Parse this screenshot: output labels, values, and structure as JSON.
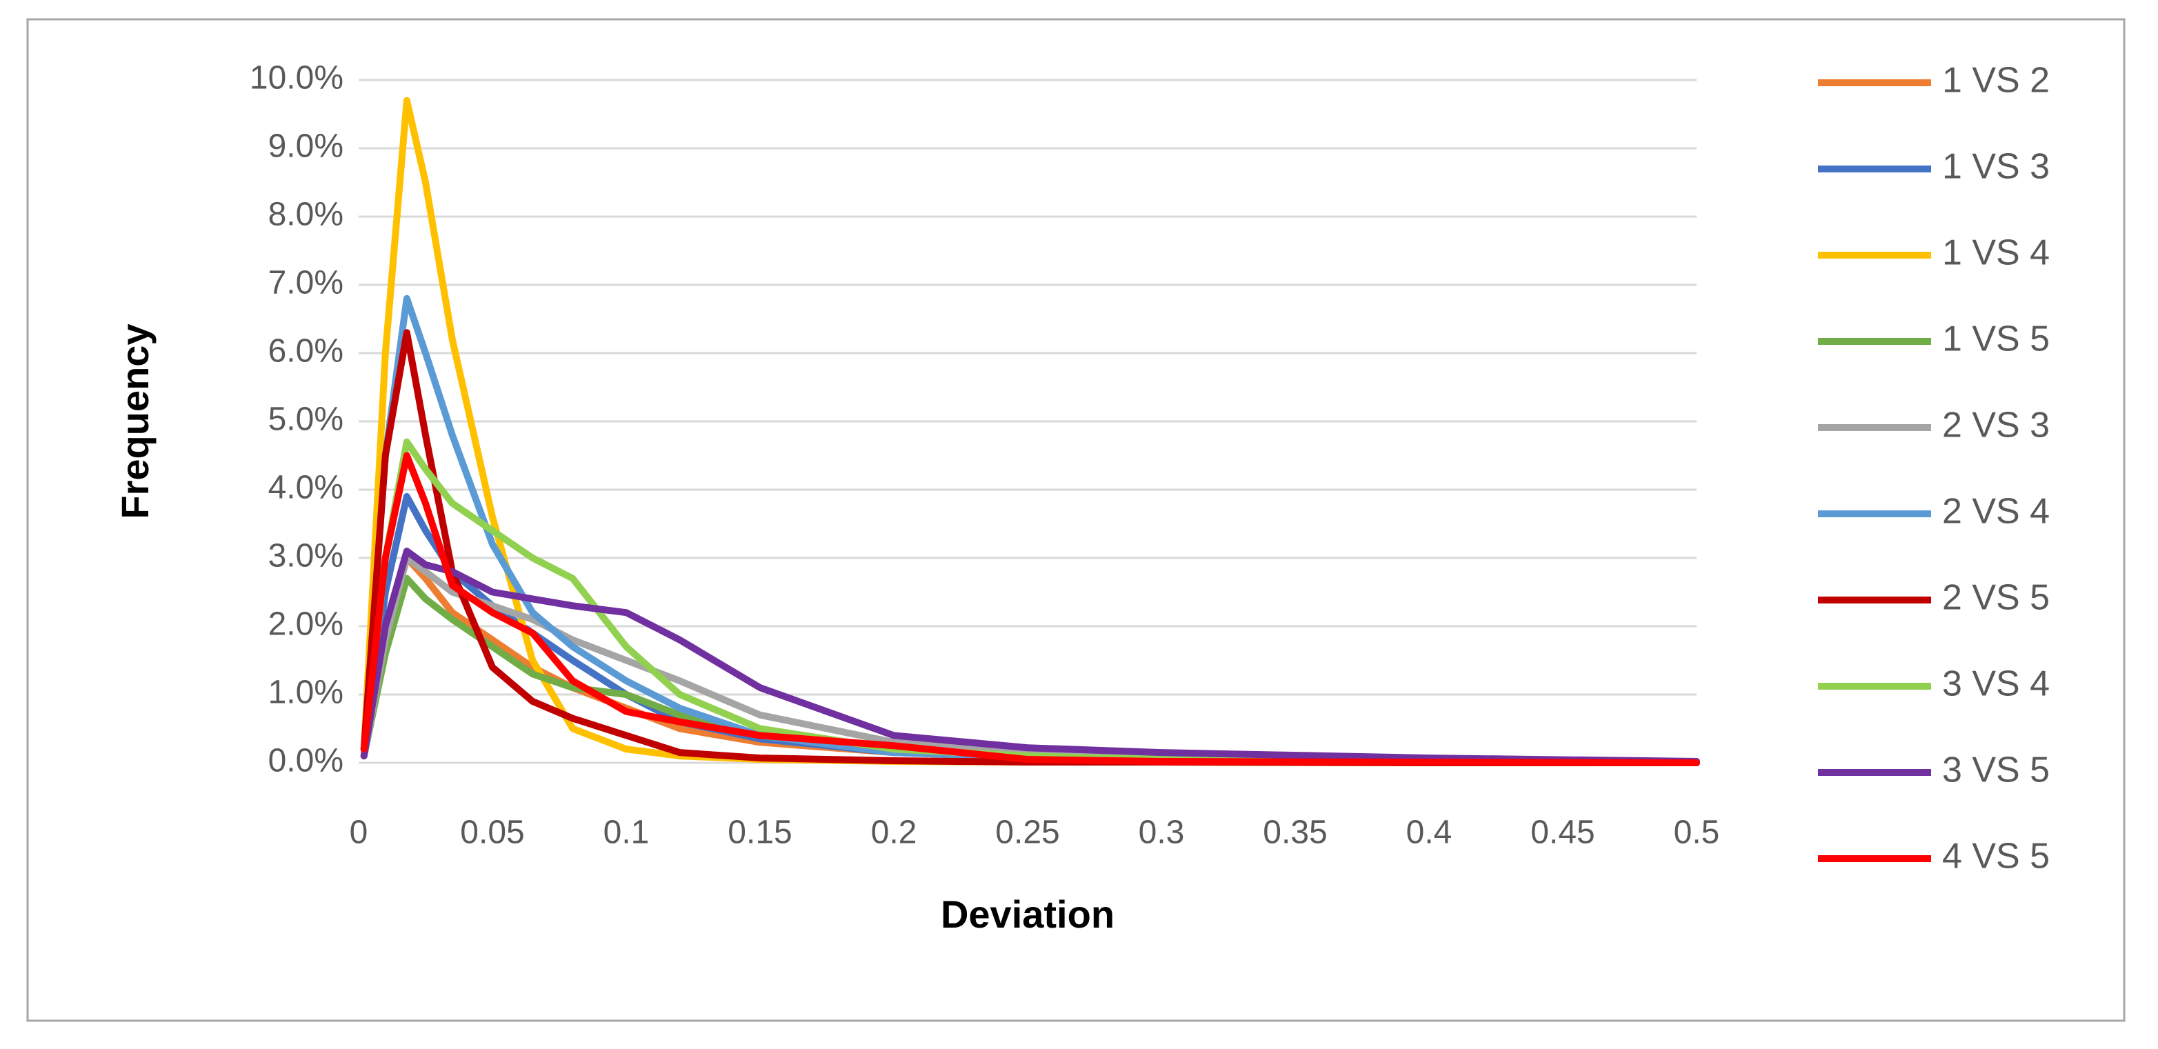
{
  "chart_data": {
    "type": "line",
    "x_label": "Deviation",
    "y_label": "Frequency",
    "x": [
      0.002,
      0.01,
      0.018,
      0.025,
      0.035,
      0.05,
      0.065,
      0.08,
      0.1,
      0.12,
      0.15,
      0.2,
      0.25,
      0.3,
      0.4,
      0.5
    ],
    "series": [
      {
        "name": "1 VS 2",
        "color": "#ed7d31",
        "values": [
          0.1,
          1.8,
          3.0,
          2.7,
          2.2,
          1.8,
          1.4,
          1.1,
          0.8,
          0.5,
          0.3,
          0.15,
          0.08,
          0.05,
          0.02,
          0.01
        ]
      },
      {
        "name": "1 VS 3",
        "color": "#4472c4",
        "values": [
          0.1,
          2.5,
          3.9,
          3.4,
          2.8,
          2.3,
          1.9,
          1.5,
          1.0,
          0.6,
          0.35,
          0.15,
          0.08,
          0.05,
          0.02,
          0.01
        ]
      },
      {
        "name": "1 VS 4",
        "color": "#ffc000",
        "values": [
          0.2,
          6.0,
          9.7,
          8.5,
          6.2,
          3.6,
          1.5,
          0.5,
          0.2,
          0.1,
          0.05,
          0.02,
          0.01,
          0.01,
          0,
          0
        ]
      },
      {
        "name": "1 VS 5",
        "color": "#70ad47",
        "values": [
          0.1,
          1.6,
          2.7,
          2.4,
          2.1,
          1.7,
          1.3,
          1.1,
          1.0,
          0.7,
          0.4,
          0.2,
          0.1,
          0.05,
          0.02,
          0.01
        ]
      },
      {
        "name": "2 VS 3",
        "color": "#a5a5a5",
        "values": [
          0.1,
          1.8,
          3.0,
          2.8,
          2.5,
          2.3,
          2.1,
          1.8,
          1.5,
          1.2,
          0.7,
          0.3,
          0.15,
          0.08,
          0.03,
          0.01
        ]
      },
      {
        "name": "2 VS 4",
        "color": "#5b9bd5",
        "values": [
          0.2,
          4.5,
          6.8,
          6.0,
          4.8,
          3.2,
          2.2,
          1.7,
          1.2,
          0.8,
          0.4,
          0.15,
          0.08,
          0.04,
          0.02,
          0.01
        ]
      },
      {
        "name": "2 VS 5",
        "color": "#c00000",
        "values": [
          0.2,
          4.5,
          6.3,
          4.8,
          2.8,
          1.4,
          0.9,
          0.65,
          0.4,
          0.15,
          0.07,
          0.03,
          0.01,
          0.01,
          0,
          0
        ]
      },
      {
        "name": "3 VS 4",
        "color": "#92d050",
        "values": [
          0.1,
          3.0,
          4.7,
          4.3,
          3.8,
          3.4,
          3.0,
          2.7,
          1.7,
          1.0,
          0.5,
          0.2,
          0.1,
          0.05,
          0.02,
          0.01
        ]
      },
      {
        "name": "3 VS 5",
        "color": "#7030a0",
        "values": [
          0.1,
          2.0,
          3.1,
          2.9,
          2.8,
          2.5,
          2.4,
          2.3,
          2.2,
          1.8,
          1.1,
          0.4,
          0.22,
          0.15,
          0.07,
          0.02
        ]
      },
      {
        "name": "4 VS 5",
        "color": "#ff0000",
        "values": [
          0.2,
          3.0,
          4.5,
          3.8,
          2.6,
          2.2,
          1.9,
          1.2,
          0.75,
          0.6,
          0.4,
          0.25,
          0.05,
          0.02,
          0.01,
          0
        ]
      }
    ],
    "xlim": [
      0,
      0.5
    ],
    "xticks": [
      0,
      0.05,
      0.1,
      0.15,
      0.2,
      0.25,
      0.3,
      0.35,
      0.4,
      0.45,
      0.5
    ],
    "ylim": [
      0,
      10
    ],
    "yticks": [
      {
        "value": 0,
        "label": "0.0%"
      },
      {
        "value": 1,
        "label": "1.0%"
      },
      {
        "value": 2,
        "label": "2.0%"
      },
      {
        "value": 3,
        "label": "3.0%"
      },
      {
        "value": 4,
        "label": "4.0%"
      },
      {
        "value": 5,
        "label": "5.0%"
      },
      {
        "value": 6,
        "label": "6.0%"
      },
      {
        "value": 7,
        "label": "7.0%"
      },
      {
        "value": 8,
        "label": "8.0%"
      },
      {
        "value": 9,
        "label": "9.0%"
      },
      {
        "value": 10,
        "label": "10.0%"
      }
    ],
    "grid": true,
    "legend": "right"
  }
}
